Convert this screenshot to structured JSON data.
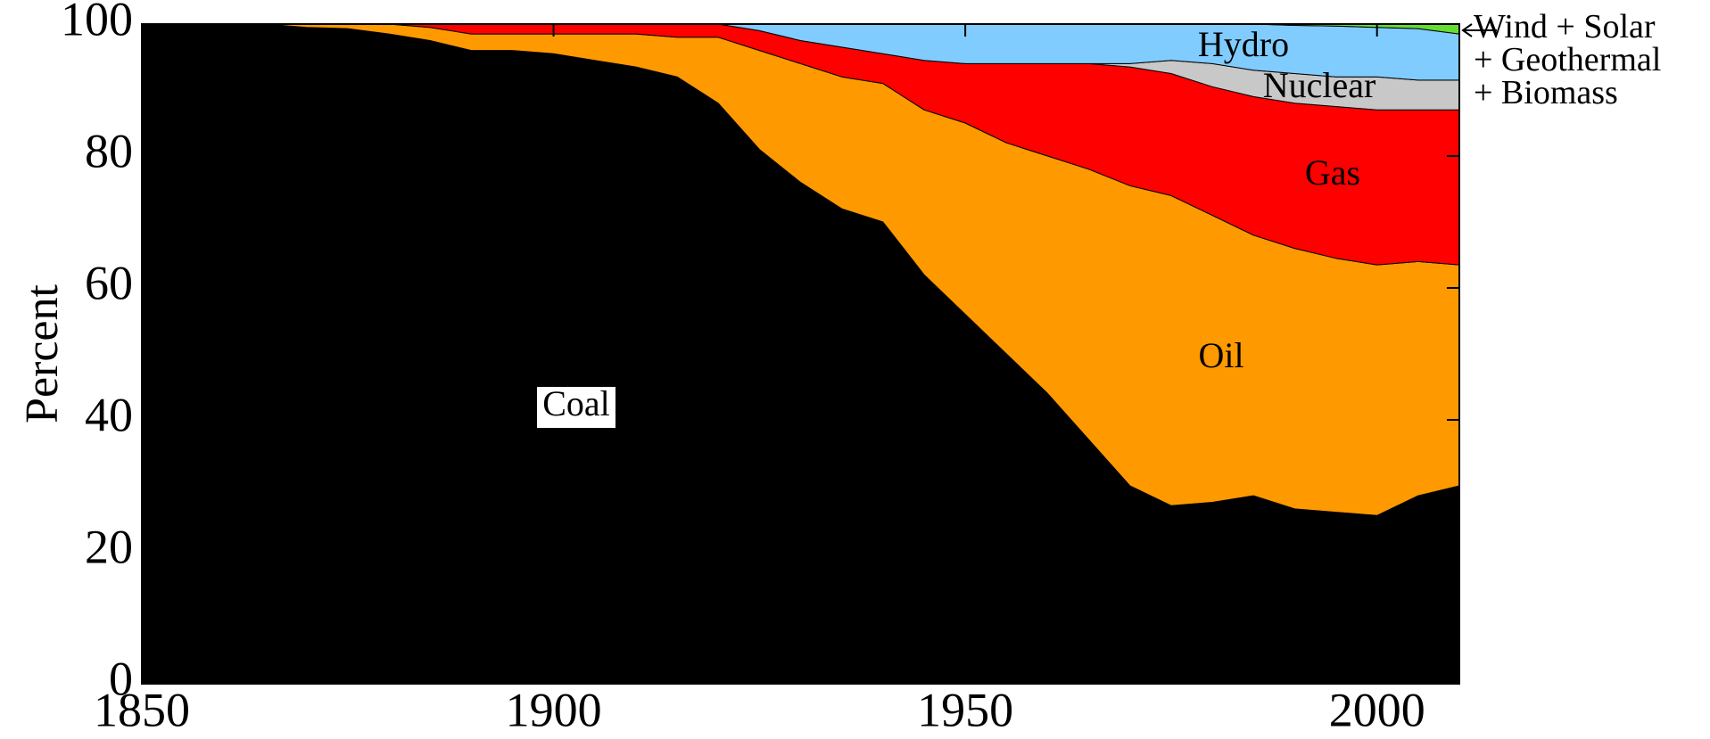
{
  "chart_data": {
    "type": "stacked_area",
    "ylabel": "Percent",
    "x": [
      1850,
      1855,
      1860,
      1865,
      1870,
      1875,
      1880,
      1885,
      1890,
      1895,
      1900,
      1905,
      1910,
      1915,
      1920,
      1925,
      1930,
      1935,
      1940,
      1945,
      1950,
      1955,
      1960,
      1965,
      1970,
      1975,
      1980,
      1985,
      1990,
      1995,
      2000,
      2005,
      2010
    ],
    "series": [
      {
        "name": "Coal",
        "color": "#000000",
        "values": [
          100,
          100,
          100,
          100,
          99.5,
          99.3,
          98.5,
          97.5,
          96,
          96,
          95.5,
          94.5,
          93.5,
          92,
          88,
          81,
          76,
          72,
          70,
          62,
          56,
          50,
          44,
          37,
          30,
          27,
          27.5,
          28.5,
          26.5,
          26,
          25.5,
          28.5,
          30
        ]
      },
      {
        "name": "Oil",
        "color": "#ff9900",
        "values": [
          0,
          0,
          0,
          0,
          0.5,
          0.7,
          1.5,
          2,
          2.5,
          2.5,
          3,
          4,
          5,
          6,
          10,
          15,
          18,
          20,
          21,
          25,
          29,
          32,
          36,
          41,
          45.5,
          47,
          43.5,
          39.5,
          39.5,
          38.5,
          38,
          35.5,
          33.5
        ]
      },
      {
        "name": "Gas",
        "color": "#ff0000",
        "values": [
          0,
          0,
          0,
          0,
          0,
          0,
          0,
          0.5,
          1.5,
          1.5,
          1.5,
          1.5,
          1.5,
          2,
          2,
          3,
          3.5,
          4.5,
          4.5,
          7.5,
          9,
          12,
          14,
          16,
          18,
          18.5,
          19.5,
          21,
          22,
          23,
          23.5,
          23,
          23.5
        ]
      },
      {
        "name": "Nuclear",
        "color": "#c8c8c8",
        "values": [
          0,
          0,
          0,
          0,
          0,
          0,
          0,
          0,
          0,
          0,
          0,
          0,
          0,
          0,
          0,
          0,
          0,
          0,
          0,
          0,
          0,
          0,
          0,
          0,
          0.5,
          2,
          3.5,
          4,
          4.5,
          4.5,
          5,
          4.5,
          4.5
        ]
      },
      {
        "name": "Hydro",
        "color": "#80ccff",
        "values": [
          0,
          0,
          0,
          0,
          0,
          0,
          0,
          0,
          0,
          0,
          0,
          0,
          0,
          0,
          0,
          1,
          2.5,
          3.5,
          4.5,
          5.5,
          6,
          6,
          6,
          6,
          6,
          5.5,
          6,
          7,
          7.3,
          7.7,
          7.5,
          7.8,
          7
        ]
      },
      {
        "name": "Wind + Solar\n+ Geothermal\n+ Biomass",
        "color": "#66dd33",
        "values": [
          0,
          0,
          0,
          0,
          0,
          0,
          0,
          0,
          0,
          0,
          0,
          0,
          0,
          0,
          0,
          0,
          0,
          0,
          0,
          0,
          0,
          0,
          0,
          0,
          0,
          0,
          0,
          0,
          0.2,
          0.3,
          0.5,
          0.7,
          1.5
        ]
      }
    ],
    "xlim": [
      1850,
      2010
    ],
    "ylim": [
      0,
      100
    ],
    "xticks": [
      1850,
      1900,
      1950,
      2000
    ],
    "yticks": [
      0,
      20,
      40,
      60,
      80,
      100
    ]
  }
}
